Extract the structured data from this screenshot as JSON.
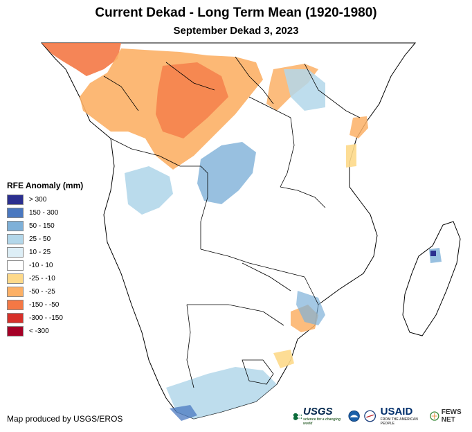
{
  "header": {
    "title": "Current Dekad - Long Term Mean (1920-1980)",
    "subtitle": "September Dekad 3, 2023"
  },
  "legend": {
    "title": "RFE Anomaly (mm)",
    "items": [
      {
        "label": "> 300",
        "color": "#2b2f8f"
      },
      {
        "label": "150 - 300",
        "color": "#4a78c0"
      },
      {
        "label": "50 - 150",
        "color": "#7eb0d8"
      },
      {
        "label": "25 - 50",
        "color": "#b3d7ea"
      },
      {
        "label": "10 - 25",
        "color": "#ddeef6"
      },
      {
        "label": "-10 - 10",
        "color": "#ffffff"
      },
      {
        "label": "-25 - -10",
        "color": "#fdd98a"
      },
      {
        "label": "-50 - -25",
        "color": "#fcb066"
      },
      {
        "label": "-150 - -50",
        "color": "#f47845"
      },
      {
        "label": "-300 - -150",
        "color": "#d7302a"
      },
      {
        "label": "< -300",
        "color": "#a50026"
      }
    ]
  },
  "footer": {
    "credit": "Map produced by USGS/EROS",
    "logos": {
      "usgs": "USGS",
      "usgs_tagline": "science for a changing world",
      "usaid": "USAID",
      "usaid_tagline": "FROM THE AMERICAN PEOPLE",
      "fews": "FEWS NET"
    }
  },
  "colors": {
    "border": "#000000",
    "land": "#ffffff"
  }
}
